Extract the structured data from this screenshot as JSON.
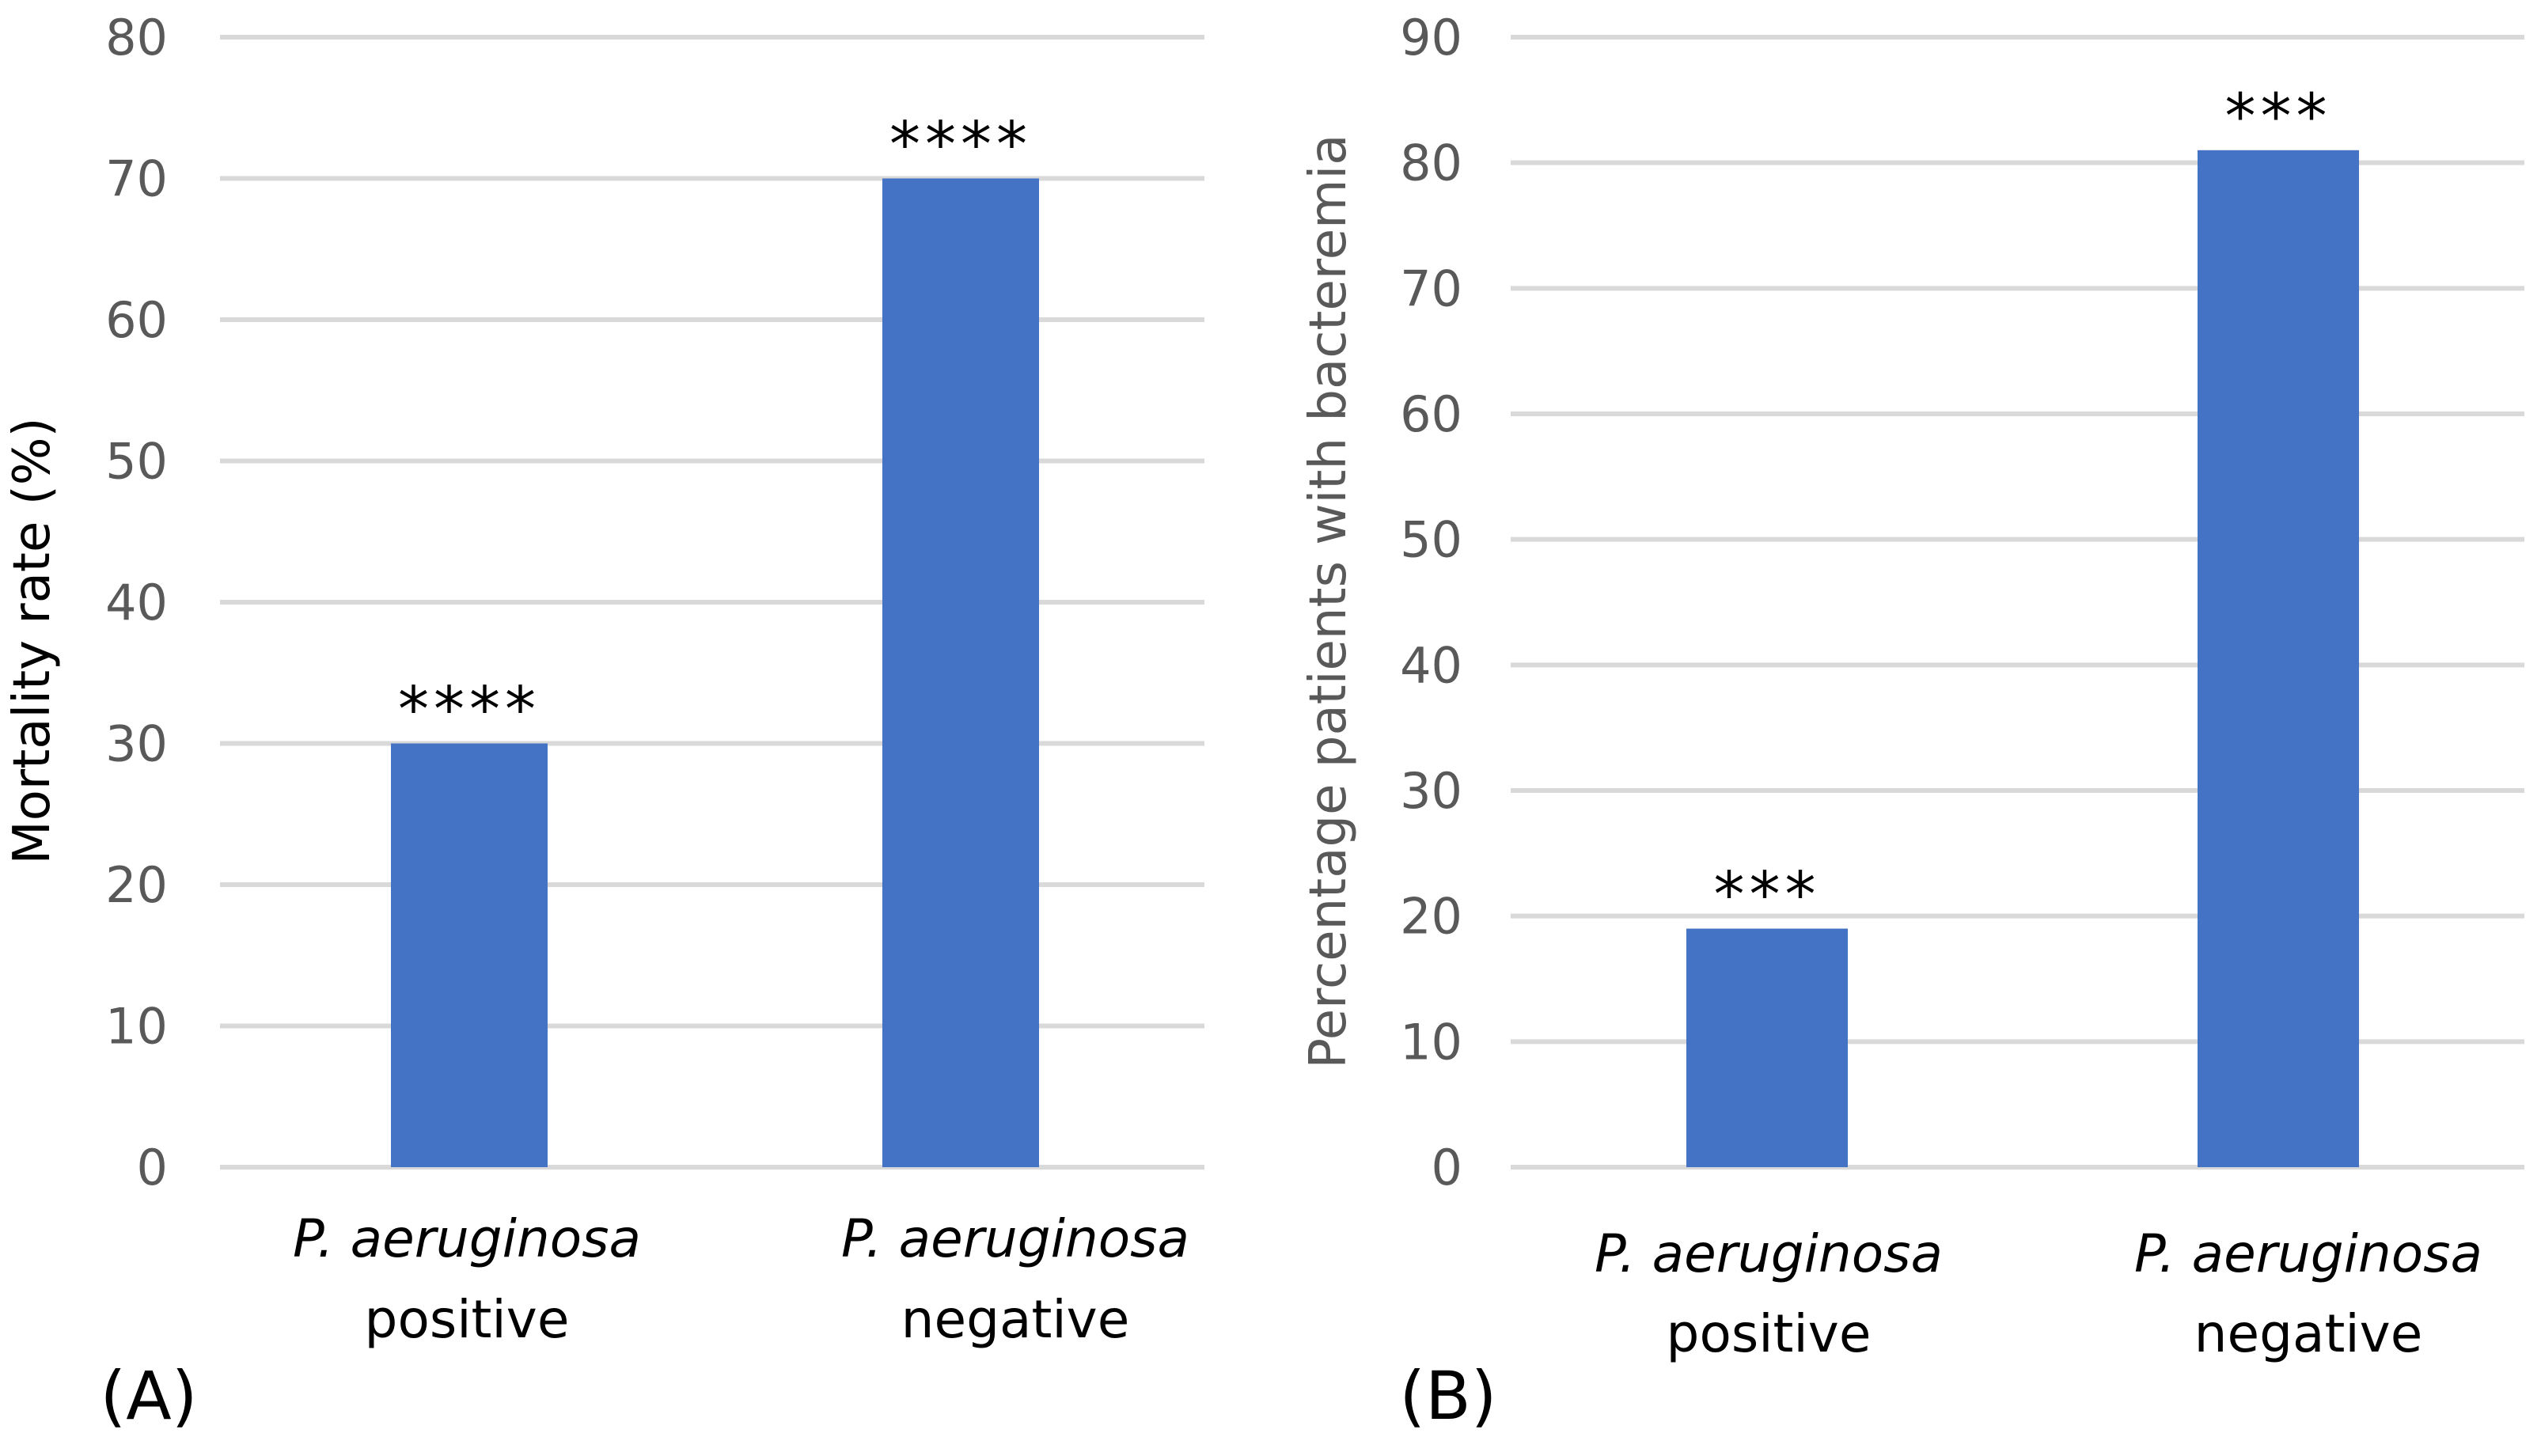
{
  "chart_data": [
    {
      "type": "bar",
      "panel_label": "(A)",
      "ylabel": "Mortality rate (%)",
      "ylim": [
        0,
        80
      ],
      "yticks": [
        0,
        10,
        20,
        30,
        40,
        50,
        60,
        70,
        80
      ],
      "grid": true,
      "categories": [
        {
          "name": "P. aeruginosa",
          "qualifier": "positive"
        },
        {
          "name": "P. aeruginosa",
          "qualifier": "negative"
        }
      ],
      "values": [
        30,
        70
      ],
      "annotations": [
        "****",
        "****"
      ],
      "bar_color": "#4472c4"
    },
    {
      "type": "bar",
      "panel_label": "(B)",
      "ylabel": "Percentage patients with bacteremia",
      "ylim": [
        0,
        90
      ],
      "yticks": [
        0,
        10,
        20,
        30,
        40,
        50,
        60,
        70,
        80,
        90
      ],
      "grid": true,
      "categories": [
        {
          "name": "P. aeruginosa",
          "qualifier": "positive"
        },
        {
          "name": "P. aeruginosa",
          "qualifier": "negative"
        }
      ],
      "values": [
        19,
        81
      ],
      "annotations": [
        "***",
        "***"
      ],
      "bar_color": "#4472c4"
    }
  ]
}
